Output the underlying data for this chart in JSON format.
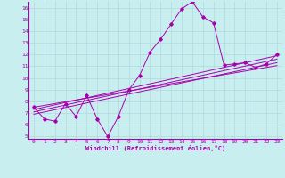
{
  "xlabel": "Windchill (Refroidissement éolien,°C)",
  "ylabel": "",
  "background_color": "#c8eef0",
  "grid_color": "#b0d8dc",
  "line_color": "#aa00aa",
  "text_color": "#aa00aa",
  "xlim": [
    -0.5,
    23.5
  ],
  "ylim": [
    4.8,
    16.5
  ],
  "xticks": [
    0,
    1,
    2,
    3,
    4,
    5,
    6,
    7,
    8,
    9,
    10,
    11,
    12,
    13,
    14,
    15,
    16,
    17,
    18,
    19,
    20,
    21,
    22,
    23
  ],
  "yticks": [
    5,
    6,
    7,
    8,
    9,
    10,
    11,
    12,
    13,
    14,
    15,
    16
  ],
  "main_x": [
    0,
    1,
    2,
    3,
    4,
    5,
    6,
    7,
    8,
    9,
    10,
    11,
    12,
    13,
    14,
    15,
    16,
    17,
    18,
    19,
    20,
    21,
    22,
    23
  ],
  "main_y": [
    7.5,
    6.5,
    6.3,
    7.8,
    6.7,
    8.5,
    6.5,
    5.0,
    6.7,
    9.0,
    10.2,
    12.2,
    13.3,
    14.6,
    15.9,
    16.5,
    15.2,
    14.7,
    11.1,
    11.2,
    11.3,
    10.9,
    11.2,
    12.0
  ],
  "reg_lines": [
    {
      "x": [
        0,
        23
      ],
      "y": [
        7.3,
        11.9
      ]
    },
    {
      "x": [
        0,
        23
      ],
      "y": [
        7.1,
        11.6
      ]
    },
    {
      "x": [
        0,
        23
      ],
      "y": [
        6.9,
        11.3
      ]
    },
    {
      "x": [
        0,
        23
      ],
      "y": [
        7.5,
        11.05
      ]
    }
  ]
}
